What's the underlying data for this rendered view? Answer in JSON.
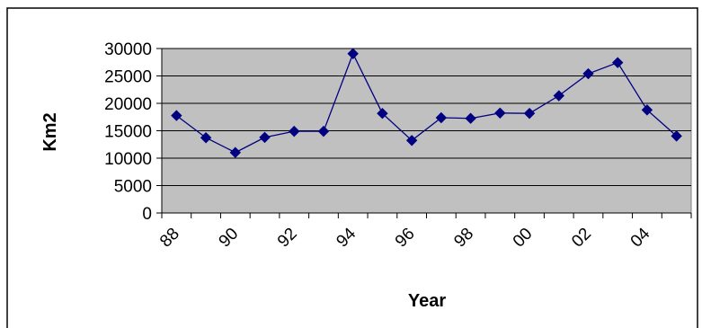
{
  "chart_data": {
    "type": "line",
    "title": "",
    "xlabel": "Year",
    "ylabel": "Km2",
    "x": [
      1988,
      1989,
      1990,
      1991,
      1992,
      1993,
      1994,
      1995,
      1996,
      1997,
      1998,
      1999,
      2000,
      2001,
      2002,
      2003,
      2004,
      2005
    ],
    "x_tick_labels": [
      "88",
      "90",
      "92",
      "94",
      "96",
      "98",
      "00",
      "02",
      "04"
    ],
    "series": [
      {
        "values": [
          17770,
          13730,
          11030,
          13790,
          14900,
          14900,
          29060,
          18160,
          13230,
          17380,
          17260,
          18230,
          18170,
          21390,
          25400,
          27430,
          18790,
          14040
        ]
      }
    ],
    "y_ticks": [
      0,
      5000,
      10000,
      15000,
      20000,
      25000,
      30000
    ],
    "ylim": [
      0,
      30000
    ],
    "grid": "horizontal",
    "legend": "none",
    "colors": {
      "plot_background": "#c0c0c0",
      "series": "#000080",
      "gridline": "#000000"
    }
  }
}
